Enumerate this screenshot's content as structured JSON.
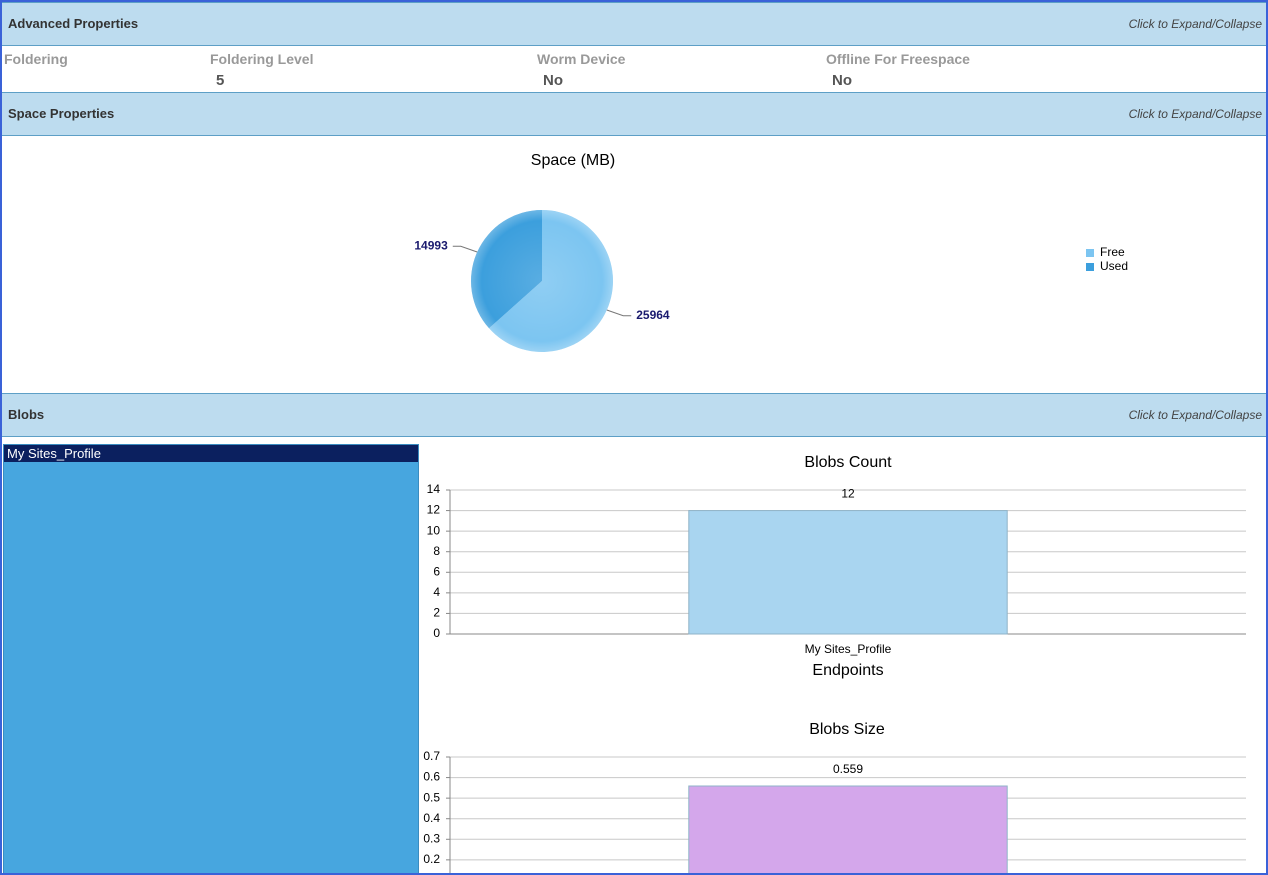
{
  "sections": [
    {
      "title": "Advanced Properties",
      "toggle": "Click to Expand/Collapse"
    },
    {
      "title": "Space Properties",
      "toggle": "Click to Expand/Collapse"
    },
    {
      "title": "Blobs",
      "toggle": "Click to Expand/Collapse"
    }
  ],
  "advanced_properties": {
    "fields": [
      {
        "label": "Foldering"
      },
      {
        "label": "Foldering Level",
        "value": 5
      },
      {
        "label": "Worm Device",
        "value": "No"
      },
      {
        "label": "Offline For Freespace",
        "value": "No"
      }
    ]
  },
  "blobs_list": {
    "items": [
      "My Sites_Profile"
    ]
  },
  "chart_data": [
    {
      "type": "pie",
      "title": "Space (MB)",
      "categories": [
        "Free",
        "Used"
      ],
      "values": [
        25964,
        14993
      ],
      "colors": [
        "#7cc5f1",
        "#3c9fdd"
      ],
      "legend": "right"
    },
    {
      "type": "bar",
      "title": "Blobs Count",
      "categories": [
        "My Sites_Profile"
      ],
      "values": [
        12
      ],
      "color": "#a9d5f0",
      "ylim": [
        0,
        14
      ],
      "yticks": [
        0,
        2,
        4,
        6,
        8,
        10,
        12,
        14
      ],
      "xlabel": "Endpoints",
      "grid": true
    },
    {
      "type": "bar",
      "title": "Blobs Size",
      "values": [
        0.559
      ],
      "color": "#d4a7eb",
      "ylim": [
        0,
        0.7
      ],
      "yticks": [
        0.2,
        0.3,
        0.4,
        0.5,
        0.6,
        0.7
      ],
      "grid": true
    }
  ]
}
